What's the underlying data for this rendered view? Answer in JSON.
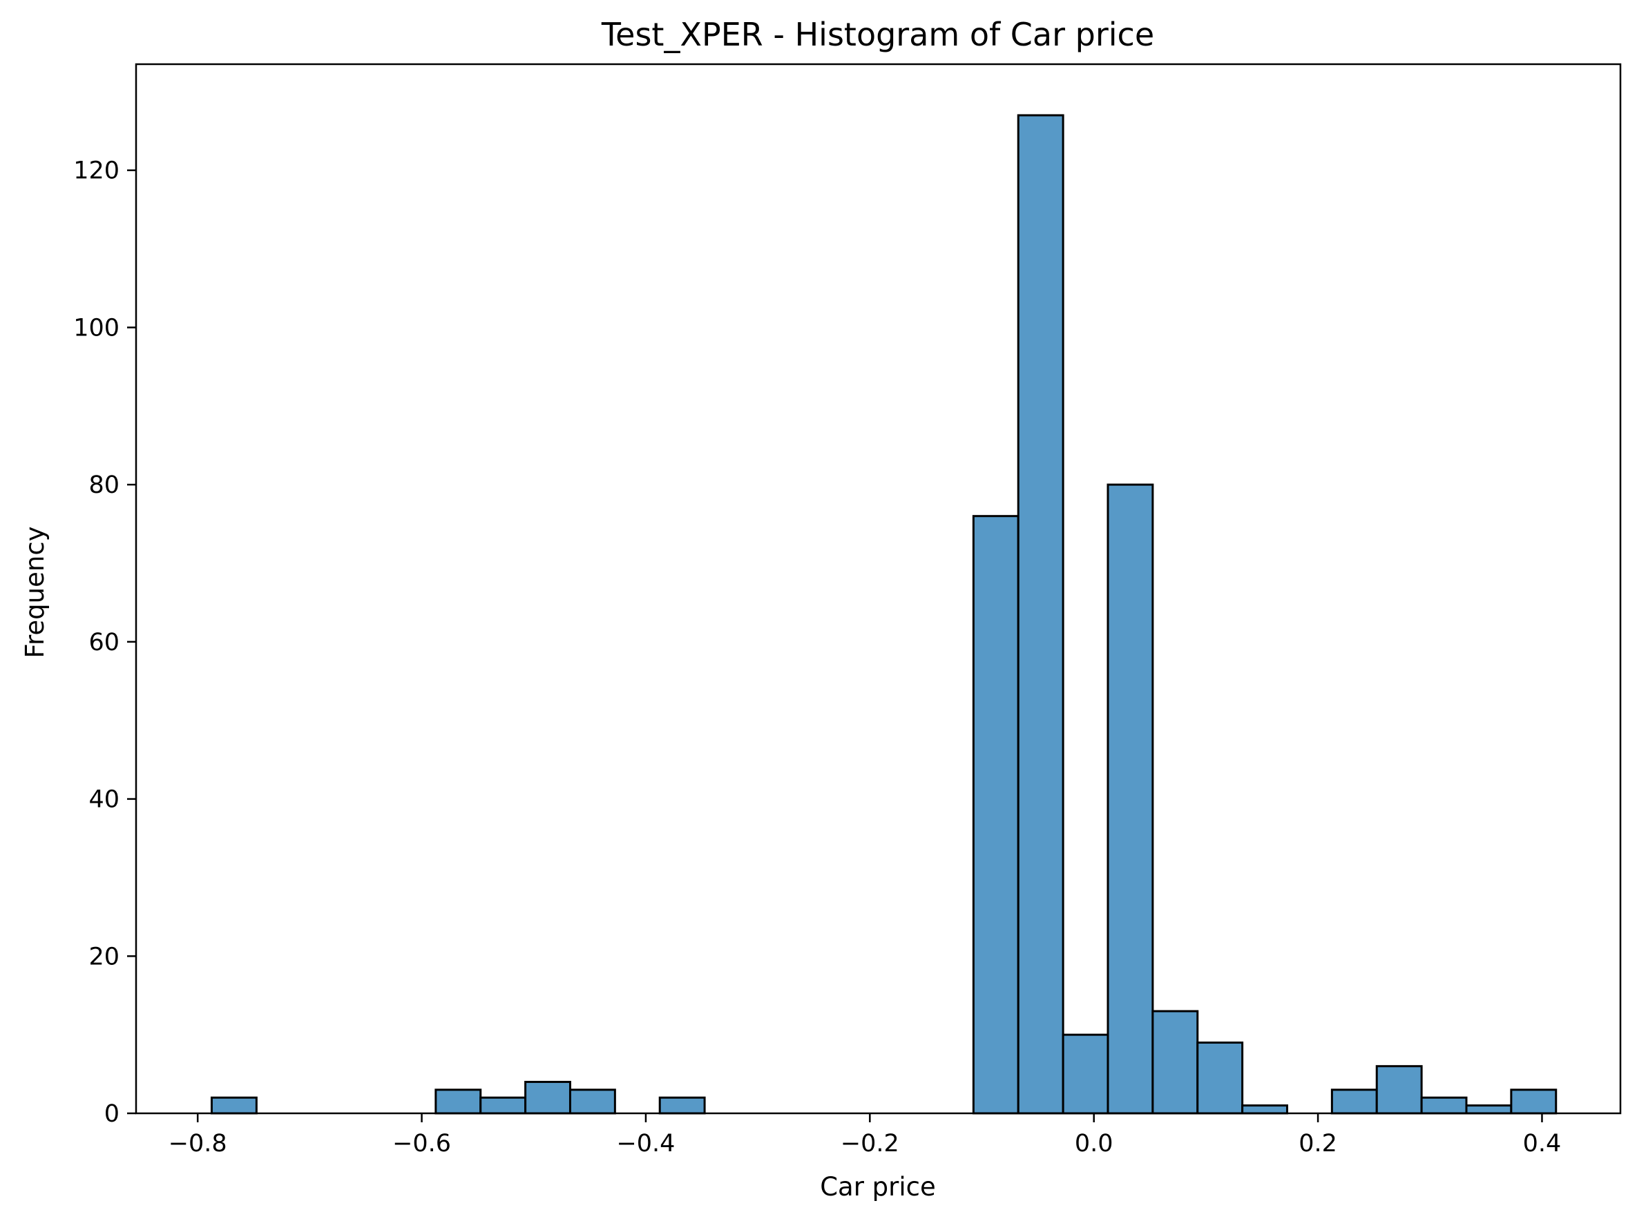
{
  "chart_data": {
    "type": "bar",
    "title": "Test_XPER - Histogram of Car price",
    "xlabel": "Car price",
    "ylabel": "Frequency",
    "xlim": [
      -0.855,
      0.47
    ],
    "ylim": [
      0,
      133.5
    ],
    "xticks": [
      {
        "value": -0.8,
        "label": "−0.8"
      },
      {
        "value": -0.6,
        "label": "−0.6"
      },
      {
        "value": -0.4,
        "label": "−0.4"
      },
      {
        "value": -0.2,
        "label": "−0.2"
      },
      {
        "value": 0.0,
        "label": "0.0"
      },
      {
        "value": 0.2,
        "label": "0.2"
      },
      {
        "value": 0.4,
        "label": "0.4"
      }
    ],
    "yticks": [
      {
        "value": 0,
        "label": "0"
      },
      {
        "value": 20,
        "label": "20"
      },
      {
        "value": 40,
        "label": "40"
      },
      {
        "value": 60,
        "label": "60"
      },
      {
        "value": 80,
        "label": "80"
      },
      {
        "value": 100,
        "label": "100"
      },
      {
        "value": 120,
        "label": "120"
      }
    ],
    "bin_edges": [
      -0.7875,
      -0.7475,
      -0.7075,
      -0.6675,
      -0.6275,
      -0.5875,
      -0.5475,
      -0.5075,
      -0.4675,
      -0.4275,
      -0.3875,
      -0.3475,
      -0.3075,
      -0.2675,
      -0.2275,
      -0.1875,
      -0.1475,
      -0.1075,
      -0.0675,
      -0.0275,
      0.0125,
      0.0525,
      0.0925,
      0.1325,
      0.1725,
      0.2125,
      0.2525,
      0.2925,
      0.3325,
      0.3725,
      0.4125
    ],
    "counts": [
      2,
      0,
      0,
      0,
      0,
      3,
      2,
      4,
      3,
      0,
      2,
      0,
      0,
      0,
      0,
      0,
      0,
      76,
      127,
      10,
      80,
      13,
      9,
      1,
      0,
      3,
      6,
      2,
      1,
      3
    ],
    "bar_color": "#5799c7",
    "edge_color": "#000000",
    "grid": false
  }
}
